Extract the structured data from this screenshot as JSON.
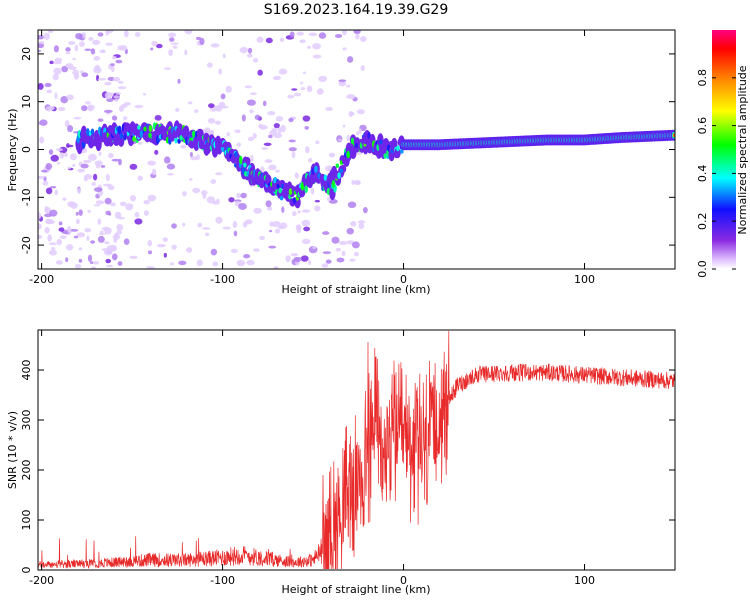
{
  "title": "S169.2023.164.19.39.G29",
  "chart_data": [
    {
      "type": "heatmap",
      "xlabel": "Height of straight line (km)",
      "ylabel": "Frequency (Hz)",
      "xlim": [
        -202,
        150
      ],
      "ylim": [
        -25,
        25
      ],
      "xticks": [
        -200,
        -100,
        0,
        100
      ],
      "yticks": [
        -20,
        -10,
        0,
        10,
        20
      ],
      "colorbar": {
        "label": "Normalized spectral amplitude",
        "range": [
          0,
          1
        ],
        "ticks": [
          0.0,
          0.2,
          0.4,
          0.6,
          0.8
        ],
        "tick_labels": [
          "0.0",
          "0.2",
          "0.4",
          "0.6",
          "0.8"
        ]
      },
      "ridge": [
        {
          "x": -180,
          "y": 2
        },
        {
          "x": -160,
          "y": 3
        },
        {
          "x": -140,
          "y": 3.5
        },
        {
          "x": -120,
          "y": 3
        },
        {
          "x": -100,
          "y": 0
        },
        {
          "x": -90,
          "y": -3
        },
        {
          "x": -80,
          "y": -6
        },
        {
          "x": -70,
          "y": -8
        },
        {
          "x": -60,
          "y": -10
        },
        {
          "x": -50,
          "y": -5
        },
        {
          "x": -40,
          "y": -8
        },
        {
          "x": -30,
          "y": 0
        },
        {
          "x": -20,
          "y": 2
        },
        {
          "x": -10,
          "y": 0
        },
        {
          "x": 0,
          "y": 1
        },
        {
          "x": 20,
          "y": 1
        },
        {
          "x": 50,
          "y": 1.5
        },
        {
          "x": 80,
          "y": 2
        },
        {
          "x": 100,
          "y": 2
        },
        {
          "x": 120,
          "y": 2.5
        },
        {
          "x": 150,
          "y": 3
        }
      ]
    },
    {
      "type": "line",
      "xlabel": "Height of straight line (km)",
      "ylabel": "SNR (10 * v/v)",
      "xlim": [
        -202,
        150
      ],
      "ylim": [
        0,
        480
      ],
      "xticks": [
        -200,
        -100,
        0,
        100
      ],
      "yticks": [
        0,
        100,
        200,
        300,
        400
      ],
      "color": "#e82a2a",
      "envelope": [
        {
          "x": -202,
          "y": 10
        },
        {
          "x": -180,
          "y": 12
        },
        {
          "x": -160,
          "y": 15
        },
        {
          "x": -140,
          "y": 20
        },
        {
          "x": -120,
          "y": 20
        },
        {
          "x": -100,
          "y": 25
        },
        {
          "x": -90,
          "y": 30
        },
        {
          "x": -80,
          "y": 25
        },
        {
          "x": -70,
          "y": 20
        },
        {
          "x": -60,
          "y": 15
        },
        {
          "x": -50,
          "y": 20
        },
        {
          "x": -45,
          "y": 40
        },
        {
          "x": -40,
          "y": 80
        },
        {
          "x": -35,
          "y": 120
        },
        {
          "x": -30,
          "y": 150
        },
        {
          "x": -25,
          "y": 180
        },
        {
          "x": -20,
          "y": 220
        },
        {
          "x": -15,
          "y": 300
        },
        {
          "x": -12,
          "y": 200
        },
        {
          "x": -8,
          "y": 250
        },
        {
          "x": -5,
          "y": 280
        },
        {
          "x": 0,
          "y": 260
        },
        {
          "x": 5,
          "y": 250
        },
        {
          "x": 10,
          "y": 230
        },
        {
          "x": 15,
          "y": 280
        },
        {
          "x": 20,
          "y": 310
        },
        {
          "x": 25,
          "y": 340
        },
        {
          "x": 30,
          "y": 370
        },
        {
          "x": 40,
          "y": 390
        },
        {
          "x": 60,
          "y": 395
        },
        {
          "x": 80,
          "y": 395
        },
        {
          "x": 100,
          "y": 390
        },
        {
          "x": 120,
          "y": 385
        },
        {
          "x": 150,
          "y": 378
        }
      ]
    }
  ]
}
